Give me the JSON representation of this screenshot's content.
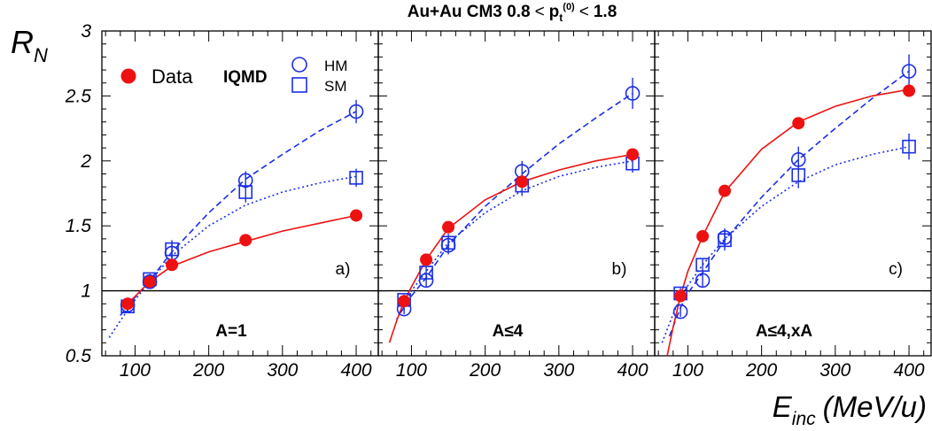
{
  "title": {
    "main": "Au+Au CM3 0.8",
    "lt1": "<",
    "var": "p",
    "sub": "t",
    "sup": "(0)",
    "lt2": "<",
    "max": "1.8"
  },
  "ylabel": {
    "main": "R",
    "sub": "N"
  },
  "xlabel": {
    "main": "E",
    "sub": "inc",
    "unit": "(MeV/u)"
  },
  "legend": {
    "data": "Data",
    "model": "IQMD",
    "hm": "HM",
    "sm": "SM"
  },
  "colors": {
    "data": "#ee1111",
    "model": "#1a2ee6",
    "axis": "#000000"
  },
  "chart_data": {
    "type": "scatter",
    "xlim": [
      55,
      430
    ],
    "ylim": [
      0.5,
      3
    ],
    "x_ticks": [
      100,
      200,
      300,
      400
    ],
    "y_ticks": [
      0.5,
      1,
      1.5,
      2,
      2.5,
      3
    ],
    "y_tick_labels": [
      "0.5",
      "1",
      "1.5",
      "2",
      "2.5",
      "3"
    ],
    "reference_line": 1,
    "panels": [
      {
        "tag": "a)",
        "label": "A=1",
        "show_y_ticks": true,
        "data": {
          "x": [
            90,
            120,
            150,
            250,
            400
          ],
          "y": [
            0.9,
            1.07,
            1.2,
            1.39,
            1.58
          ]
        },
        "hm": {
          "x": [
            90,
            120,
            150,
            250,
            400
          ],
          "y": [
            0.89,
            1.07,
            1.29,
            1.85,
            2.38
          ],
          "err": [
            0.04,
            0.04,
            0.07,
            0.07,
            0.09
          ]
        },
        "sm": {
          "x": [
            90,
            120,
            150,
            250,
            400
          ],
          "y": [
            0.88,
            1.09,
            1.32,
            1.76,
            1.87
          ],
          "err": [
            0.04,
            0.04,
            0.07,
            0.08,
            0.07
          ]
        },
        "data_fit": {
          "x": [
            90,
            120,
            150,
            200,
            250,
            300,
            350,
            400
          ],
          "y": [
            0.9,
            1.07,
            1.19,
            1.3,
            1.38,
            1.46,
            1.52,
            1.58
          ]
        },
        "hm_fit": {
          "x": [
            80,
            100,
            120,
            150,
            200,
            250,
            300,
            350,
            400
          ],
          "y": [
            0.81,
            0.95,
            1.08,
            1.3,
            1.6,
            1.86,
            2.05,
            2.23,
            2.38
          ]
        },
        "sm_fit": {
          "x": [
            65,
            80,
            100,
            120,
            150,
            200,
            250,
            300,
            350,
            400
          ],
          "y": [
            0.64,
            0.77,
            0.93,
            1.07,
            1.27,
            1.5,
            1.66,
            1.76,
            1.83,
            1.88
          ]
        }
      },
      {
        "tag": "b)",
        "label": "A≤4",
        "show_y_ticks": false,
        "data": {
          "x": [
            90,
            120,
            150,
            250,
            400
          ],
          "y": [
            0.92,
            1.24,
            1.49,
            1.84,
            2.05
          ]
        },
        "hm": {
          "x": [
            90,
            120,
            150,
            250,
            400
          ],
          "y": [
            0.86,
            1.08,
            1.35,
            1.92,
            2.52
          ],
          "err": [
            0.04,
            0.05,
            0.07,
            0.08,
            0.12
          ]
        },
        "sm": {
          "x": [
            90,
            120,
            150,
            250,
            400
          ],
          "y": [
            0.93,
            1.14,
            1.37,
            1.81,
            1.98
          ],
          "err": [
            0.04,
            0.05,
            0.07,
            0.08,
            0.07
          ]
        },
        "data_fit": {
          "x": [
            70,
            80,
            90,
            100,
            120,
            150,
            200,
            250,
            300,
            350,
            400
          ],
          "y": [
            0.6,
            0.77,
            0.92,
            1.03,
            1.24,
            1.48,
            1.7,
            1.84,
            1.93,
            2.0,
            2.05
          ]
        },
        "hm_fit": {
          "x": [
            85,
            100,
            120,
            150,
            200,
            250,
            300,
            350,
            400
          ],
          "y": [
            0.83,
            0.96,
            1.1,
            1.35,
            1.65,
            1.9,
            2.13,
            2.33,
            2.52
          ]
        },
        "sm_fit": {
          "x": [
            80,
            90,
            100,
            120,
            150,
            200,
            250,
            300,
            350,
            400
          ],
          "y": [
            0.78,
            0.9,
            1.0,
            1.15,
            1.37,
            1.6,
            1.77,
            1.88,
            1.95,
            2.0
          ]
        }
      },
      {
        "tag": "c)",
        "label": "A≤4,xA",
        "show_y_ticks": false,
        "data": {
          "x": [
            90,
            120,
            150,
            250,
            400
          ],
          "y": [
            0.96,
            1.42,
            1.77,
            2.29,
            2.54
          ]
        },
        "hm": {
          "x": [
            90,
            120,
            150,
            250,
            400
          ],
          "y": [
            0.84,
            1.08,
            1.41,
            2.01,
            2.69
          ],
          "err": [
            0.04,
            0.05,
            0.07,
            0.1,
            0.13
          ]
        },
        "sm": {
          "x": [
            90,
            120,
            150,
            250,
            400
          ],
          "y": [
            0.98,
            1.2,
            1.39,
            1.89,
            2.11
          ],
          "err": [
            0.04,
            0.05,
            0.08,
            0.1,
            0.1
          ]
        },
        "data_fit": {
          "x": [
            72,
            80,
            90,
            100,
            120,
            150,
            200,
            250,
            300,
            350,
            400
          ],
          "y": [
            0.5,
            0.72,
            0.96,
            1.15,
            1.42,
            1.76,
            2.09,
            2.3,
            2.42,
            2.5,
            2.55
          ]
        },
        "hm_fit": {
          "x": [
            75,
            90,
            100,
            120,
            150,
            200,
            250,
            300,
            350,
            400
          ],
          "y": [
            0.65,
            0.87,
            0.98,
            1.14,
            1.39,
            1.72,
            2.01,
            2.25,
            2.48,
            2.69
          ]
        },
        "sm_fit": {
          "x": [
            65,
            80,
            90,
            100,
            120,
            150,
            200,
            250,
            300,
            350,
            400
          ],
          "y": [
            0.6,
            0.82,
            0.95,
            1.04,
            1.2,
            1.4,
            1.65,
            1.84,
            1.97,
            2.05,
            2.11
          ]
        }
      }
    ]
  }
}
